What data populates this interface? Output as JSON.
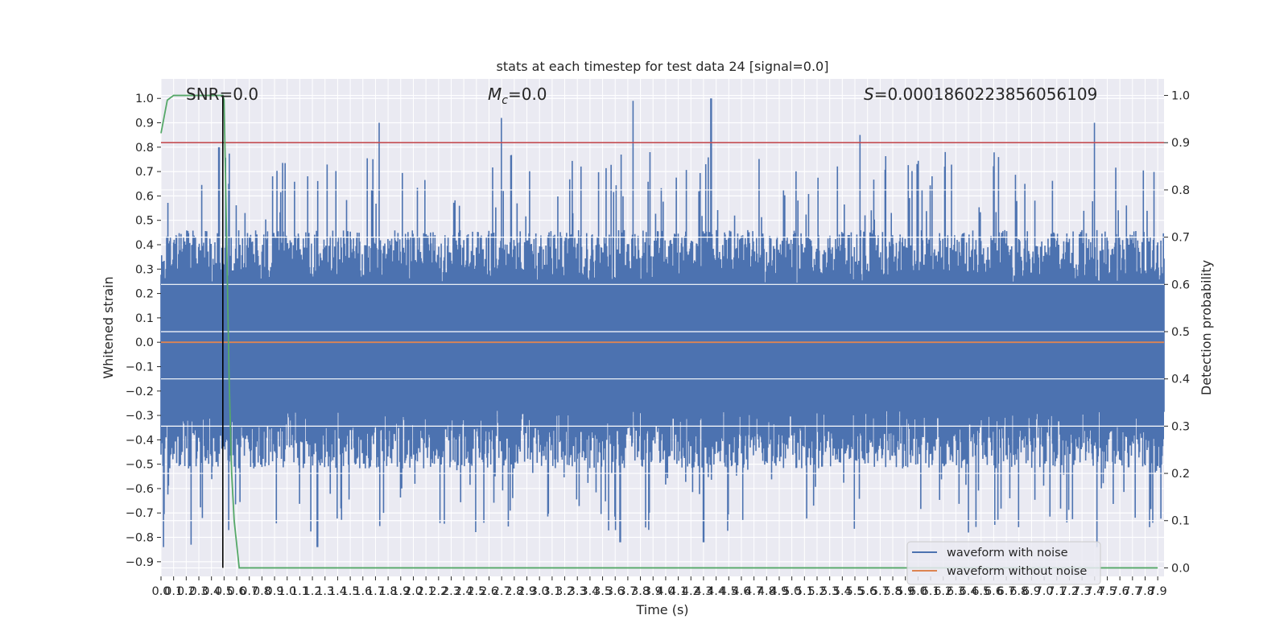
{
  "chart_data": {
    "type": "line",
    "title": "stats at each timestep for test data 24 [signal=0.0]",
    "xlabel": "Time (s)",
    "ylabel": "Whitened strain",
    "y2label": "Detection probability",
    "xlim": [
      0.0,
      7.95
    ],
    "ylim": [
      -0.96,
      1.08
    ],
    "y2lim": [
      -0.018,
      1.035
    ],
    "grid": true,
    "x_ticks": [
      "0.0",
      "0.1",
      "0.2",
      "0.3",
      "0.4",
      "0.5",
      "0.6",
      "0.7",
      "0.8",
      "0.9",
      "1.0",
      "1.1",
      "1.2",
      "1.3",
      "1.4",
      "1.5",
      "1.6",
      "1.7",
      "1.8",
      "1.9",
      "2.0",
      "2.1",
      "2.2",
      "2.3",
      "2.4",
      "2.5",
      "2.6",
      "2.7",
      "2.8",
      "2.9",
      "3.0",
      "3.1",
      "3.2",
      "3.3",
      "3.4",
      "3.5",
      "3.6",
      "3.7",
      "3.8",
      "3.9",
      "4.0",
      "4.1",
      "4.2",
      "4.3",
      "4.4",
      "4.5",
      "4.6",
      "4.7",
      "4.8",
      "4.9",
      "5.0",
      "5.1",
      "5.2",
      "5.3",
      "5.4",
      "5.5",
      "5.6",
      "5.7",
      "5.8",
      "5.9",
      "6.0",
      "6.1",
      "6.2",
      "6.3",
      "6.4",
      "6.5",
      "6.6",
      "6.7",
      "6.8",
      "6.9",
      "7.0",
      "7.1",
      "7.2",
      "7.3",
      "7.4",
      "7.5",
      "7.6",
      "7.7",
      "7.8",
      "7.9"
    ],
    "y_ticks": [
      "1.0",
      "0.9",
      "0.8",
      "0.7",
      "0.6",
      "0.5",
      "0.4",
      "0.3",
      "0.2",
      "0.1",
      "0.0",
      "-0.1",
      "-0.2",
      "-0.3",
      "-0.4",
      "-0.5",
      "-0.6",
      "-0.7",
      "-0.8",
      "-0.9"
    ],
    "y2_ticks": [
      "1.0",
      "0.9",
      "0.8",
      "0.7",
      "0.6",
      "0.5",
      "0.4",
      "0.3",
      "0.2",
      "0.1",
      "0.0"
    ],
    "annotations": {
      "snr": "SNR=0.0",
      "mc_symbol": "M",
      "mc_sub": "c",
      "mc_value": "=0.0",
      "s_symbol": "S",
      "s_value": "=0.0001860223856056109"
    },
    "legend": {
      "position": "lower-right",
      "entries": [
        "waveform with noise",
        "waveform without noise"
      ]
    },
    "series": [
      {
        "name": "waveform with noise",
        "color": "#4c72b0",
        "axis": "left",
        "envelope_upper_typical": 0.4,
        "envelope_lower_typical": -0.45,
        "peaks_x": [
          0.46,
          1.73,
          2.7,
          3.74,
          4.36,
          5.54,
          7.4
        ],
        "peaks_y": [
          0.8,
          0.9,
          0.92,
          0.99,
          1.0,
          0.85,
          0.9
        ],
        "troughs_x": [
          0.02,
          0.24,
          1.24,
          2.56,
          3.64,
          4.3,
          6.4,
          7.42
        ],
        "troughs_y": [
          -0.84,
          -0.83,
          -0.84,
          -0.74,
          -0.82,
          -0.82,
          -0.78,
          -0.84
        ]
      },
      {
        "name": "waveform without noise",
        "color": "#dd8452",
        "axis": "left",
        "x": [
          0.0,
          7.95
        ],
        "y": [
          0.0,
          0.0
        ]
      },
      {
        "color": "#55a868",
        "axis": "right",
        "x": [
          0.0,
          0.05,
          0.1,
          0.2,
          0.3,
          0.4,
          0.49,
          0.5,
          0.52,
          0.54,
          0.56,
          0.58,
          0.62,
          7.9
        ],
        "y": [
          0.92,
          0.99,
          1.0,
          1.0,
          1.0,
          1.0,
          1.0,
          0.99,
          0.7,
          0.4,
          0.2,
          0.1,
          0.0,
          0.0
        ]
      }
    ],
    "threshold": {
      "color": "#c44e52",
      "axis": "right",
      "y": 0.9
    },
    "marker_line": {
      "color": "#000000",
      "x": 0.49,
      "y_bottom": 0.0,
      "y_top": 1.0
    }
  }
}
